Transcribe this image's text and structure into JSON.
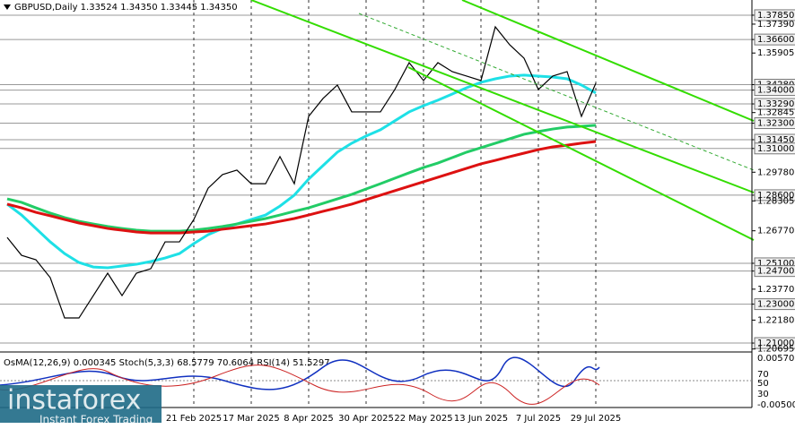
{
  "chart_data": {
    "type": "line",
    "title": "GBPUSD,Daily  1.33524 1.34350 1.33445 1.34350",
    "indicator_text": "OsMA(12,26,9) 0.000345  Stoch(5,3,3) 68.5779 70.6064  RSI(14) 51.5297",
    "indicator_ticks": [
      "0.005700",
      "70",
      "50",
      "30",
      "-0.005005"
    ],
    "watermark": [
      "instaforex",
      "Instant Forex Trading"
    ],
    "categories": [
      null,
      null,
      null,
      null,
      null,
      null,
      null,
      null,
      null,
      null,
      null,
      null,
      null,
      "21 Feb 2025",
      null,
      null,
      null,
      "17 Mar 2025",
      null,
      null,
      null,
      "8 Apr 2025",
      null,
      null,
      null,
      "30 Apr 2025",
      null,
      null,
      null,
      "22 May 2025",
      null,
      null,
      null,
      "13 Jun 2025",
      null,
      null,
      null,
      "7 Jul 2025",
      null,
      null,
      null,
      "29 Jul 2025"
    ],
    "series": [
      {
        "color": "#1ee0e6",
        "values": [
          1.2814,
          1.2758,
          1.2689,
          1.262,
          1.256,
          1.2514,
          1.2491,
          1.2487,
          1.2496,
          1.2505,
          1.2519,
          1.2537,
          1.256,
          1.2611,
          1.2657,
          1.2689,
          1.2712,
          1.2735,
          1.2758,
          1.2804,
          1.286,
          1.2943,
          1.3012,
          1.3081,
          1.3127,
          1.3164,
          1.3196,
          1.3242,
          1.3288,
          1.332,
          1.3348,
          1.338,
          1.3412,
          1.344,
          1.3458,
          1.3472,
          1.3477,
          1.3472,
          1.3467,
          1.3458,
          1.3426,
          1.3385
        ]
      },
      {
        "color": "#22cc66",
        "values": [
          1.2841,
          1.2823,
          1.2795,
          1.2768,
          1.2745,
          1.2726,
          1.2712,
          1.2699,
          1.2689,
          1.268,
          1.2675,
          1.2675,
          1.2675,
          1.268,
          1.2689,
          1.2699,
          1.2712,
          1.2726,
          1.274,
          1.2758,
          1.2777,
          1.2795,
          1.2818,
          1.2841,
          1.2864,
          1.2892,
          1.2919,
          1.2947,
          1.2975,
          1.3002,
          1.3025,
          1.3053,
          1.3081,
          1.3104,
          1.3127,
          1.315,
          1.3173,
          1.3187,
          1.32,
          1.321,
          1.3214,
          1.3219
        ]
      },
      {
        "color": "#dd1111",
        "values": [
          1.2814,
          1.2795,
          1.2772,
          1.2754,
          1.2735,
          1.2717,
          1.2703,
          1.2689,
          1.268,
          1.2671,
          1.2666,
          1.2666,
          1.2666,
          1.2671,
          1.2675,
          1.2685,
          1.2694,
          1.2703,
          1.2712,
          1.2726,
          1.274,
          1.2758,
          1.2777,
          1.2795,
          1.2814,
          1.2837,
          1.286,
          1.2883,
          1.2906,
          1.2929,
          1.2952,
          1.2975,
          1.2998,
          1.3021,
          1.3039,
          1.3058,
          1.3076,
          1.3094,
          1.3108,
          1.3117,
          1.3127,
          1.3136
        ]
      },
      {
        "color": "#000000",
        "values": [
          1.2643,
          1.2551,
          1.2528,
          1.2436,
          1.2229,
          1.2229,
          1.2344,
          1.2459,
          1.2344,
          1.2459,
          1.2482,
          1.262,
          1.262,
          1.2735,
          1.2896,
          1.2966,
          1.2989,
          1.2919,
          1.2919,
          1.3058,
          1.2919,
          1.3265,
          1.3357,
          1.3426,
          1.3288,
          1.3288,
          1.3288,
          1.3403,
          1.3541,
          1.3449,
          1.3541,
          1.3495,
          1.3472,
          1.3449,
          1.3725,
          1.3633,
          1.3564,
          1.3403,
          1.3472,
          1.3495,
          1.3265,
          1.3435
        ]
      }
    ],
    "ylim": [
      1.2068,
      1.3863
    ],
    "yticks": [
      {
        "value": 1.3785,
        "label": "1.37850"
      },
      {
        "value": 1.3739,
        "label": "1.37390"
      },
      {
        "value": 1.366,
        "label": "1.36600"
      },
      {
        "value": 1.35905,
        "label": "1.35905"
      },
      {
        "value": 1.3428,
        "label": "1.34280"
      },
      {
        "value": 1.34,
        "label": "1.34000"
      },
      {
        "value": 1.3329,
        "label": "1.33290"
      },
      {
        "value": 1.32845,
        "label": "1.32845"
      },
      {
        "value": 1.323,
        "label": "1.32300"
      },
      {
        "value": 1.3145,
        "label": "1.31450"
      },
      {
        "value": 1.31,
        "label": "1.31000"
      },
      {
        "value": 1.2978,
        "label": "1.29780"
      },
      {
        "value": 1.286,
        "label": "1.28600"
      },
      {
        "value": 1.28305,
        "label": "1.28305"
      },
      {
        "value": 1.2677,
        "label": "1.26770"
      },
      {
        "value": 1.251,
        "label": "1.25100"
      },
      {
        "value": 1.247,
        "label": "1.24700"
      },
      {
        "value": 1.2377,
        "label": "1.23770"
      },
      {
        "value": 1.23,
        "label": "1.23000"
      },
      {
        "value": 1.2218,
        "label": "1.22180"
      },
      {
        "value": 1.21,
        "label": "1.21000"
      },
      {
        "value": 1.20695,
        "label": "1.20695"
      }
    ],
    "hlines": [
      1.3785,
      1.366,
      1.3428,
      1.34,
      1.3329,
      1.323,
      1.3145,
      1.31,
      1.286,
      1.251,
      1.247,
      1.23,
      1.21
    ]
  }
}
